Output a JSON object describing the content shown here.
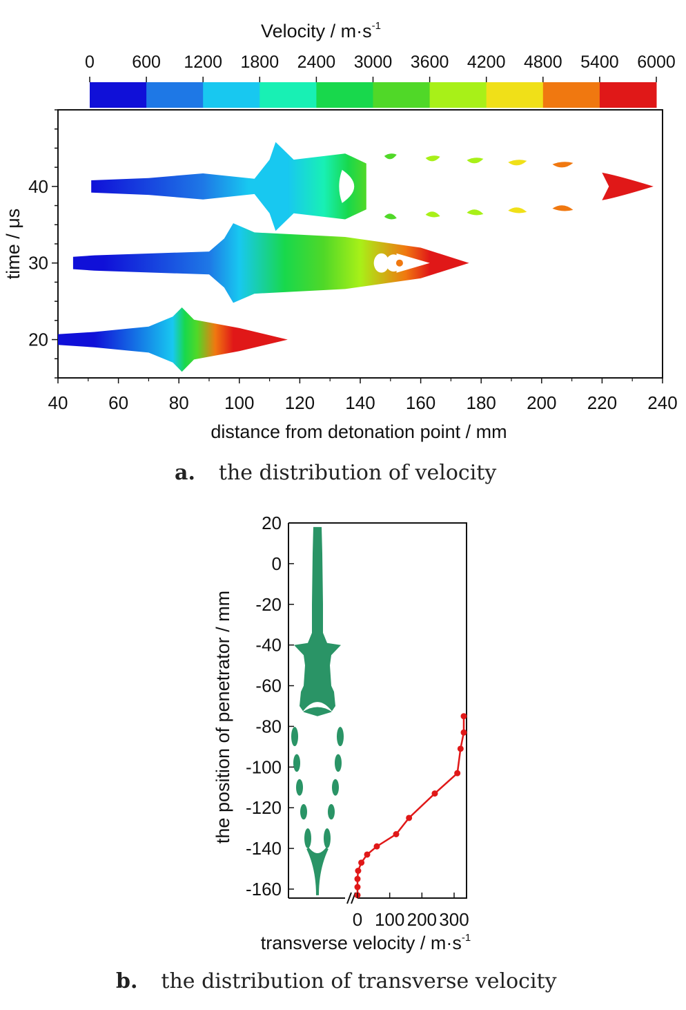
{
  "colorbar": {
    "title": "Velocity / m·s",
    "title_sup": "-1",
    "ticks": [
      "0",
      "600",
      "1200",
      "1800",
      "2400",
      "3000",
      "3600",
      "4200",
      "4800",
      "5400",
      "6000"
    ],
    "colors": [
      "#1010d8",
      "#1e78e6",
      "#18c8f0",
      "#18f0b4",
      "#18d84c",
      "#50d828",
      "#a8f018",
      "#f0e018",
      "#f07810",
      "#e01818"
    ]
  },
  "chart_data": [
    {
      "type": "heatmap",
      "title": "",
      "xlabel": "distance from detonation point / mm",
      "ylabel": "time / μs",
      "xlim": [
        40,
        240
      ],
      "ylim": [
        15,
        50
      ],
      "xticks": [
        "40",
        "60",
        "80",
        "100",
        "120",
        "140",
        "160",
        "180",
        "200",
        "220",
        "240"
      ],
      "yticks": [
        20,
        30,
        40
      ],
      "ytick_labels": [
        "20",
        "30",
        "40"
      ],
      "series": [
        {
          "time": 20,
          "extent_mm": [
            40,
            116
          ],
          "shape": [
            {
              "x": 40,
              "half_width_us": 0.7
            },
            {
              "x": 52,
              "half_width_us": 1.0
            },
            {
              "x": 70,
              "half_width_us": 1.7
            },
            {
              "x": 78,
              "half_width_us": 3.0
            },
            {
              "x": 81,
              "half_width_us": 4.2
            },
            {
              "x": 85,
              "half_width_us": 2.6
            },
            {
              "x": 100,
              "half_width_us": 1.5
            },
            {
              "x": 116,
              "half_width_us": 0
            }
          ],
          "velocity": [
            {
              "x": 40,
              "v": 100
            },
            {
              "x": 52,
              "v": 450
            },
            {
              "x": 78,
              "v": 1300
            },
            {
              "x": 82,
              "v": 2700
            },
            {
              "x": 86,
              "v": 3600
            },
            {
              "x": 92,
              "v": 5100
            },
            {
              "x": 98,
              "v": 5900
            },
            {
              "x": 116,
              "v": 6000
            }
          ]
        },
        {
          "time": 30,
          "extent_mm": [
            45,
            176
          ],
          "shape": [
            {
              "x": 45,
              "half_width_us": 0.8
            },
            {
              "x": 52,
              "half_width_us": 1.0
            },
            {
              "x": 90,
              "half_width_us": 1.5
            },
            {
              "x": 95,
              "half_width_us": 3.2
            },
            {
              "x": 98,
              "half_width_us": 5.2
            },
            {
              "x": 105,
              "half_width_us": 4.0
            },
            {
              "x": 135,
              "half_width_us": 3.4
            },
            {
              "x": 160,
              "half_width_us": 2.0
            },
            {
              "x": 176,
              "half_width_us": 0
            }
          ],
          "velocity": [
            {
              "x": 45,
              "v": 200
            },
            {
              "x": 55,
              "v": 600
            },
            {
              "x": 90,
              "v": 900
            },
            {
              "x": 100,
              "v": 1500
            },
            {
              "x": 115,
              "v": 2700
            },
            {
              "x": 128,
              "v": 3400
            },
            {
              "x": 140,
              "v": 4200
            },
            {
              "x": 155,
              "v": 5000
            },
            {
              "x": 163,
              "v": 5800
            },
            {
              "x": 176,
              "v": 6000
            }
          ]
        },
        {
          "time": 40,
          "extent_mm": [
            51,
            237
          ],
          "shape": [
            {
              "x": 51,
              "half_width_us": 0.8
            },
            {
              "x": 70,
              "half_width_us": 1.1
            },
            {
              "x": 88,
              "half_width_us": 1.7
            },
            {
              "x": 105,
              "half_width_us": 1.0
            },
            {
              "x": 110,
              "half_width_us": 3.5
            },
            {
              "x": 112,
              "half_width_us": 5.8
            },
            {
              "x": 118,
              "half_width_us": 3.5
            },
            {
              "x": 135,
              "half_width_us": 4.3
            },
            {
              "x": 142,
              "half_width_us": 3.0
            }
          ],
          "velocity": [
            {
              "x": 51,
              "v": 500
            },
            {
              "x": 88,
              "v": 800
            },
            {
              "x": 103,
              "v": 1300
            },
            {
              "x": 116,
              "v": 1800
            },
            {
              "x": 128,
              "v": 2300
            },
            {
              "x": 136,
              "v": 2900
            },
            {
              "x": 142,
              "v": 3100
            }
          ],
          "fragments": [
            {
              "x": 150,
              "v": 3100
            },
            {
              "x": 164,
              "v": 3700
            },
            {
              "x": 178,
              "v": 4200
            },
            {
              "x": 192,
              "v": 4400
            },
            {
              "x": 207,
              "v": 5200
            },
            {
              "x": 225,
              "v": 6000
            }
          ]
        }
      ]
    },
    {
      "type": "line",
      "title": "",
      "xlabel": "transverse velocity / m·s",
      "xlabel_sup": "-1",
      "ylabel": "the position of penetrator / mm",
      "xlim": [
        -10,
        350
      ],
      "ylim": [
        -162,
        20
      ],
      "xticks": [
        0,
        100,
        200,
        300
      ],
      "xtick_labels": [
        "0",
        "100",
        "200",
        "300"
      ],
      "yticks": [
        20,
        0,
        -20,
        -40,
        -60,
        -80,
        -100,
        -120,
        -140,
        -160
      ],
      "ytick_labels": [
        "20",
        "0",
        "-20",
        "-40",
        "-60",
        "-80",
        "-100",
        "-120",
        "-140",
        "-160"
      ],
      "series": [
        {
          "color": "#e01818",
          "points": [
            {
              "x": 0,
              "y": -163
            },
            {
              "x": 0,
              "y": -159
            },
            {
              "x": 0,
              "y": -155
            },
            {
              "x": 2,
              "y": -151
            },
            {
              "x": 12,
              "y": -147
            },
            {
              "x": 30,
              "y": -143
            },
            {
              "x": 60,
              "y": -139
            },
            {
              "x": 120,
              "y": -133
            },
            {
              "x": 160,
              "y": -125
            },
            {
              "x": 240,
              "y": -113
            },
            {
              "x": 310,
              "y": -103
            },
            {
              "x": 320,
              "y": -91
            },
            {
              "x": 330,
              "y": -83
            },
            {
              "x": 330,
              "y": -75
            }
          ]
        }
      ],
      "silhouette_color": "#2a9466"
    }
  ],
  "captions": {
    "a_letter": "a.",
    "a_text": "the distribution of velocity",
    "b_letter": "b.",
    "b_text": "the distribution of transverse velocity"
  }
}
